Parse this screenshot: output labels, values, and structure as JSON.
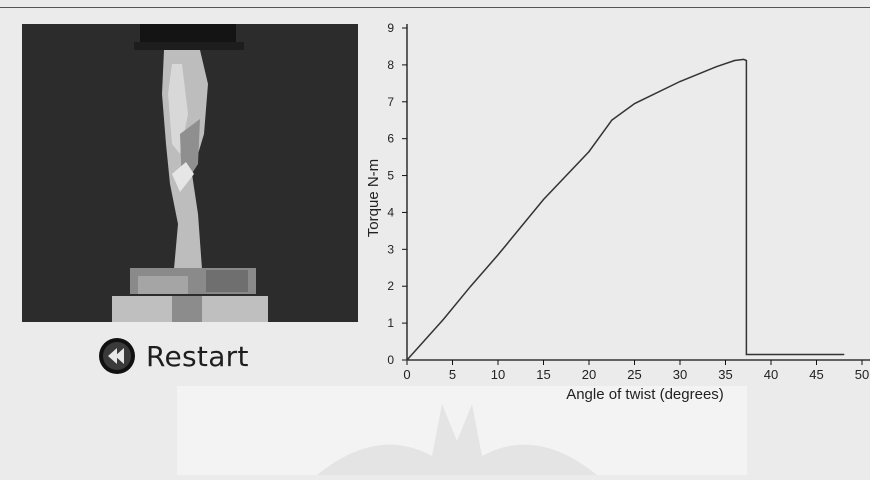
{
  "restart": {
    "label": "Restart",
    "icon": "rewind-icon"
  },
  "photo": {
    "alt": "specimen-under-torsion-photo"
  },
  "colors": {
    "curve": "#333333",
    "axis": "#111111",
    "background": "#ebebeb"
  },
  "chart_data": {
    "type": "line",
    "xlabel": "Angle of twist (degrees)",
    "ylabel": "Torque N-m",
    "xlim": [
      0,
      50
    ],
    "ylim": [
      0,
      9
    ],
    "xticks": [
      0,
      5,
      10,
      15,
      20,
      25,
      30,
      35,
      40,
      45,
      "50"
    ],
    "yticks": [
      0,
      1,
      2,
      3,
      4,
      5,
      6,
      7,
      8,
      9
    ],
    "grid": false,
    "series": [
      {
        "x": [
          0,
          4,
          7,
          10,
          15,
          20,
          22.5,
          25,
          30,
          34,
          36,
          37,
          37.3,
          37.3,
          48
        ],
        "y": [
          0,
          1.1,
          2.0,
          2.85,
          4.35,
          5.65,
          6.5,
          6.95,
          7.55,
          7.95,
          8.12,
          8.15,
          8.12,
          0.15,
          0.15
        ]
      }
    ]
  }
}
